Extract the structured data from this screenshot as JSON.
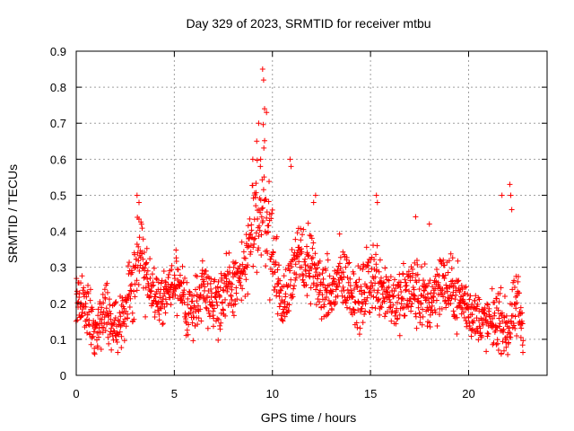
{
  "chart_data": {
    "type": "scatter",
    "title": "Day 329 of 2023, SRMTID for receiver mtbu",
    "xlabel": "GPS time / hours",
    "ylabel": "SRMTID / TECUs",
    "xlim": [
      0,
      24
    ],
    "ylim": [
      0,
      0.9
    ],
    "xticks": [
      0,
      5,
      10,
      15,
      20
    ],
    "xtick_labels": [
      "0",
      "5",
      "10",
      "15",
      "20"
    ],
    "yticks": [
      0,
      0.1,
      0.2,
      0.3,
      0.4,
      0.5,
      0.6,
      0.7,
      0.8,
      0.9
    ],
    "ytick_labels": [
      "0",
      "0.1",
      "0.2",
      "0.3",
      "0.4",
      "0.5",
      "0.6",
      "0.7",
      "0.8",
      "0.9"
    ],
    "grid": true,
    "marker": "+",
    "series": [
      {
        "name": "SRMTID",
        "color": "#ff0000",
        "trend": [
          [
            0.0,
            0.22,
            0.06
          ],
          [
            0.5,
            0.18,
            0.06
          ],
          [
            1.0,
            0.12,
            0.05
          ],
          [
            1.5,
            0.18,
            0.06
          ],
          [
            2.0,
            0.14,
            0.05
          ],
          [
            2.5,
            0.2,
            0.06
          ],
          [
            3.0,
            0.28,
            0.08
          ],
          [
            3.3,
            0.35,
            0.09
          ],
          [
            3.8,
            0.24,
            0.06
          ],
          [
            4.3,
            0.2,
            0.05
          ],
          [
            5.0,
            0.26,
            0.05
          ],
          [
            5.5,
            0.2,
            0.06
          ],
          [
            6.0,
            0.18,
            0.06
          ],
          [
            6.5,
            0.26,
            0.06
          ],
          [
            7.0,
            0.2,
            0.06
          ],
          [
            7.5,
            0.22,
            0.07
          ],
          [
            8.0,
            0.25,
            0.06
          ],
          [
            8.5,
            0.28,
            0.06
          ],
          [
            9.0,
            0.4,
            0.09
          ],
          [
            9.5,
            0.5,
            0.15
          ],
          [
            10.0,
            0.35,
            0.08
          ],
          [
            10.5,
            0.18,
            0.05
          ],
          [
            11.0,
            0.3,
            0.07
          ],
          [
            11.5,
            0.32,
            0.08
          ],
          [
            12.0,
            0.3,
            0.07
          ],
          [
            12.5,
            0.24,
            0.06
          ],
          [
            13.0,
            0.22,
            0.06
          ],
          [
            13.5,
            0.28,
            0.07
          ],
          [
            14.0,
            0.24,
            0.06
          ],
          [
            14.5,
            0.2,
            0.06
          ],
          [
            15.0,
            0.28,
            0.08
          ],
          [
            15.5,
            0.26,
            0.07
          ],
          [
            16.0,
            0.22,
            0.06
          ],
          [
            16.5,
            0.2,
            0.06
          ],
          [
            17.0,
            0.24,
            0.07
          ],
          [
            17.5,
            0.22,
            0.07
          ],
          [
            18.0,
            0.2,
            0.06
          ],
          [
            18.5,
            0.26,
            0.07
          ],
          [
            19.0,
            0.24,
            0.06
          ],
          [
            19.5,
            0.22,
            0.06
          ],
          [
            20.0,
            0.18,
            0.05
          ],
          [
            20.5,
            0.16,
            0.05
          ],
          [
            21.0,
            0.14,
            0.05
          ],
          [
            21.5,
            0.16,
            0.06
          ],
          [
            22.0,
            0.12,
            0.05
          ],
          [
            22.5,
            0.2,
            0.07
          ],
          [
            22.8,
            0.12,
            0.04
          ]
        ],
        "outliers": [
          [
            3.1,
            0.5
          ],
          [
            3.2,
            0.48
          ],
          [
            9.2,
            0.65
          ],
          [
            9.3,
            0.7
          ],
          [
            9.5,
            0.85
          ],
          [
            9.55,
            0.82
          ],
          [
            9.6,
            0.74
          ],
          [
            9.7,
            0.73
          ],
          [
            9.4,
            0.6
          ],
          [
            9.0,
            0.6
          ],
          [
            10.9,
            0.6
          ],
          [
            10.95,
            0.58
          ],
          [
            12.2,
            0.5
          ],
          [
            12.1,
            0.48
          ],
          [
            15.3,
            0.5
          ],
          [
            15.35,
            0.48
          ],
          [
            21.7,
            0.5
          ],
          [
            22.1,
            0.53
          ],
          [
            22.15,
            0.5
          ],
          [
            22.2,
            0.46
          ],
          [
            18.0,
            0.42
          ],
          [
            17.3,
            0.44
          ]
        ]
      }
    ]
  }
}
